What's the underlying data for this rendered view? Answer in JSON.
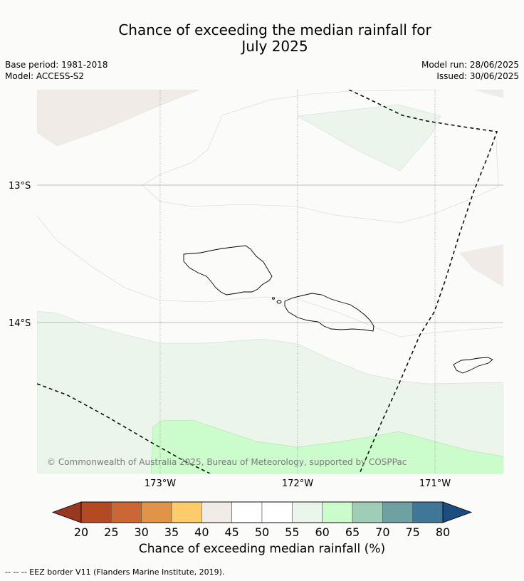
{
  "title_line1": "Chance of exceeding the median rainfall for",
  "title_line2": "July 2025",
  "meta": {
    "base_period": "Base period: 1981-2018",
    "model": "Model: ACCESS-S2",
    "model_run": "Model run: 28/06/2025",
    "issued": "Issued: 30/06/2025"
  },
  "axes": {
    "lat_labels": [
      "13°S",
      "14°S"
    ],
    "lon_labels": [
      "173°W",
      "172°W",
      "171°W"
    ]
  },
  "copyright": "© Commonwealth of Australia 2025, Bureau of Meteorology, supported by COSPPac",
  "colorbar": {
    "ticks": [
      "20",
      "25",
      "30",
      "35",
      "40",
      "45",
      "50",
      "55",
      "60",
      "65",
      "70",
      "75",
      "80"
    ],
    "colors": [
      "#b34a24",
      "#cc6632",
      "#e09447",
      "#fdcc6a",
      "#f0ebe7",
      "#ffffff",
      "#ffffff",
      "#ebf5ec",
      "#ccfccc",
      "#9fcdb8",
      "#6ea0a4",
      "#417796"
    ],
    "under_color": "#993820",
    "over_color": "#1c4d7f",
    "label": "Chance of exceeding median rainfall (%)"
  },
  "legend_note": "-- -- -- EEZ border V11 (Flanders Marine Institute, 2019).",
  "map_colors": {
    "neutral": "#fbfcfa",
    "light_brown": "#f0ebe7",
    "light_green": "#ebf5ec",
    "bright_green": "#ccfccc"
  }
}
